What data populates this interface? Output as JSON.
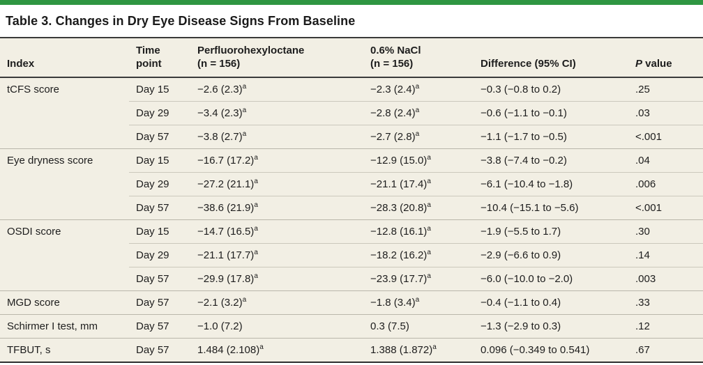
{
  "title": "Table 3. Changes in Dry Eye Disease Signs From Baseline",
  "colors": {
    "accent_green": "#2f9642",
    "table_row_bg": "#f2efe4",
    "rule_dark": "#3a3a3a",
    "hairline": "#cbc8bc"
  },
  "table": {
    "headers": {
      "index": "Index",
      "time_line1": "Time",
      "time_line2": "point",
      "pfho_line1": "Perfluorohexyloctane",
      "pfho_line2": "(n = 156)",
      "nacl_line1": "0.6% NaCl",
      "nacl_line2": "(n = 156)",
      "difference": "Difference (95% CI)",
      "pvalue_p": "P",
      "pvalue_rest": " value"
    },
    "rows": [
      {
        "group": true,
        "index": "tCFS score",
        "time": "Day 15",
        "pfho": "−2.6 (2.3)",
        "pfho_sup": "a",
        "nacl": "−2.3 (2.4)",
        "nacl_sup": "a",
        "diff": "−0.3 (−0.8 to 0.2)",
        "p": ".25"
      },
      {
        "group": false,
        "index": "",
        "time": "Day 29",
        "pfho": "−3.4 (2.3)",
        "pfho_sup": "a",
        "nacl": "−2.8 (2.4)",
        "nacl_sup": "a",
        "diff": "−0.6 (−1.1 to −0.1)",
        "p": ".03"
      },
      {
        "group": false,
        "index": "",
        "time": "Day 57",
        "pfho": "−3.8 (2.7)",
        "pfho_sup": "a",
        "nacl": "−2.7 (2.8)",
        "nacl_sup": "a",
        "diff": "−1.1 (−1.7 to −0.5)",
        "p": "<.001"
      },
      {
        "group": true,
        "index": "Eye dryness score",
        "time": "Day 15",
        "pfho": "−16.7 (17.2)",
        "pfho_sup": "a",
        "nacl": "−12.9 (15.0)",
        "nacl_sup": "a",
        "diff": "−3.8 (−7.4 to −0.2)",
        "p": ".04"
      },
      {
        "group": false,
        "index": "",
        "time": "Day 29",
        "pfho": "−27.2 (21.1)",
        "pfho_sup": "a",
        "nacl": "−21.1 (17.4)",
        "nacl_sup": "a",
        "diff": "−6.1 (−10.4 to −1.8)",
        "p": ".006"
      },
      {
        "group": false,
        "index": "",
        "time": "Day 57",
        "pfho": "−38.6 (21.9)",
        "pfho_sup": "a",
        "nacl": "−28.3 (20.8)",
        "nacl_sup": "a",
        "diff": "−10.4 (−15.1 to −5.6)",
        "p": "<.001"
      },
      {
        "group": true,
        "index": "OSDI score",
        "time": "Day 15",
        "pfho": "−14.7 (16.5)",
        "pfho_sup": "a",
        "nacl": "−12.8 (16.1)",
        "nacl_sup": "a",
        "diff": "−1.9 (−5.5 to 1.7)",
        "p": ".30"
      },
      {
        "group": false,
        "index": "",
        "time": "Day 29",
        "pfho": "−21.1 (17.7)",
        "pfho_sup": "a",
        "nacl": "−18.2 (16.2)",
        "nacl_sup": "a",
        "diff": "−2.9 (−6.6 to 0.9)",
        "p": ".14"
      },
      {
        "group": false,
        "index": "",
        "time": "Day 57",
        "pfho": "−29.9 (17.8)",
        "pfho_sup": "a",
        "nacl": "−23.9 (17.7)",
        "nacl_sup": "a",
        "diff": "−6.0 (−10.0 to −2.0)",
        "p": ".003"
      },
      {
        "group": true,
        "index": "MGD score",
        "time": "Day 57",
        "pfho": "−2.1 (3.2)",
        "pfho_sup": "a",
        "nacl": "−1.8 (3.4)",
        "nacl_sup": "a",
        "diff": "−0.4 (−1.1 to 0.4)",
        "p": ".33"
      },
      {
        "group": true,
        "index": "Schirmer I test, mm",
        "time": "Day 57",
        "pfho": "−1.0 (7.2)",
        "pfho_sup": "",
        "nacl": "0.3 (7.5)",
        "nacl_sup": "",
        "diff": "−1.3 (−2.9 to 0.3)",
        "p": ".12"
      },
      {
        "group": true,
        "index": "TFBUT, s",
        "time": "Day 57",
        "pfho": "1.484 (2.108)",
        "pfho_sup": "a",
        "nacl": "1.388 (1.872)",
        "nacl_sup": "a",
        "diff": "0.096 (−0.349 to 0.541)",
        "p": ".67"
      }
    ]
  }
}
